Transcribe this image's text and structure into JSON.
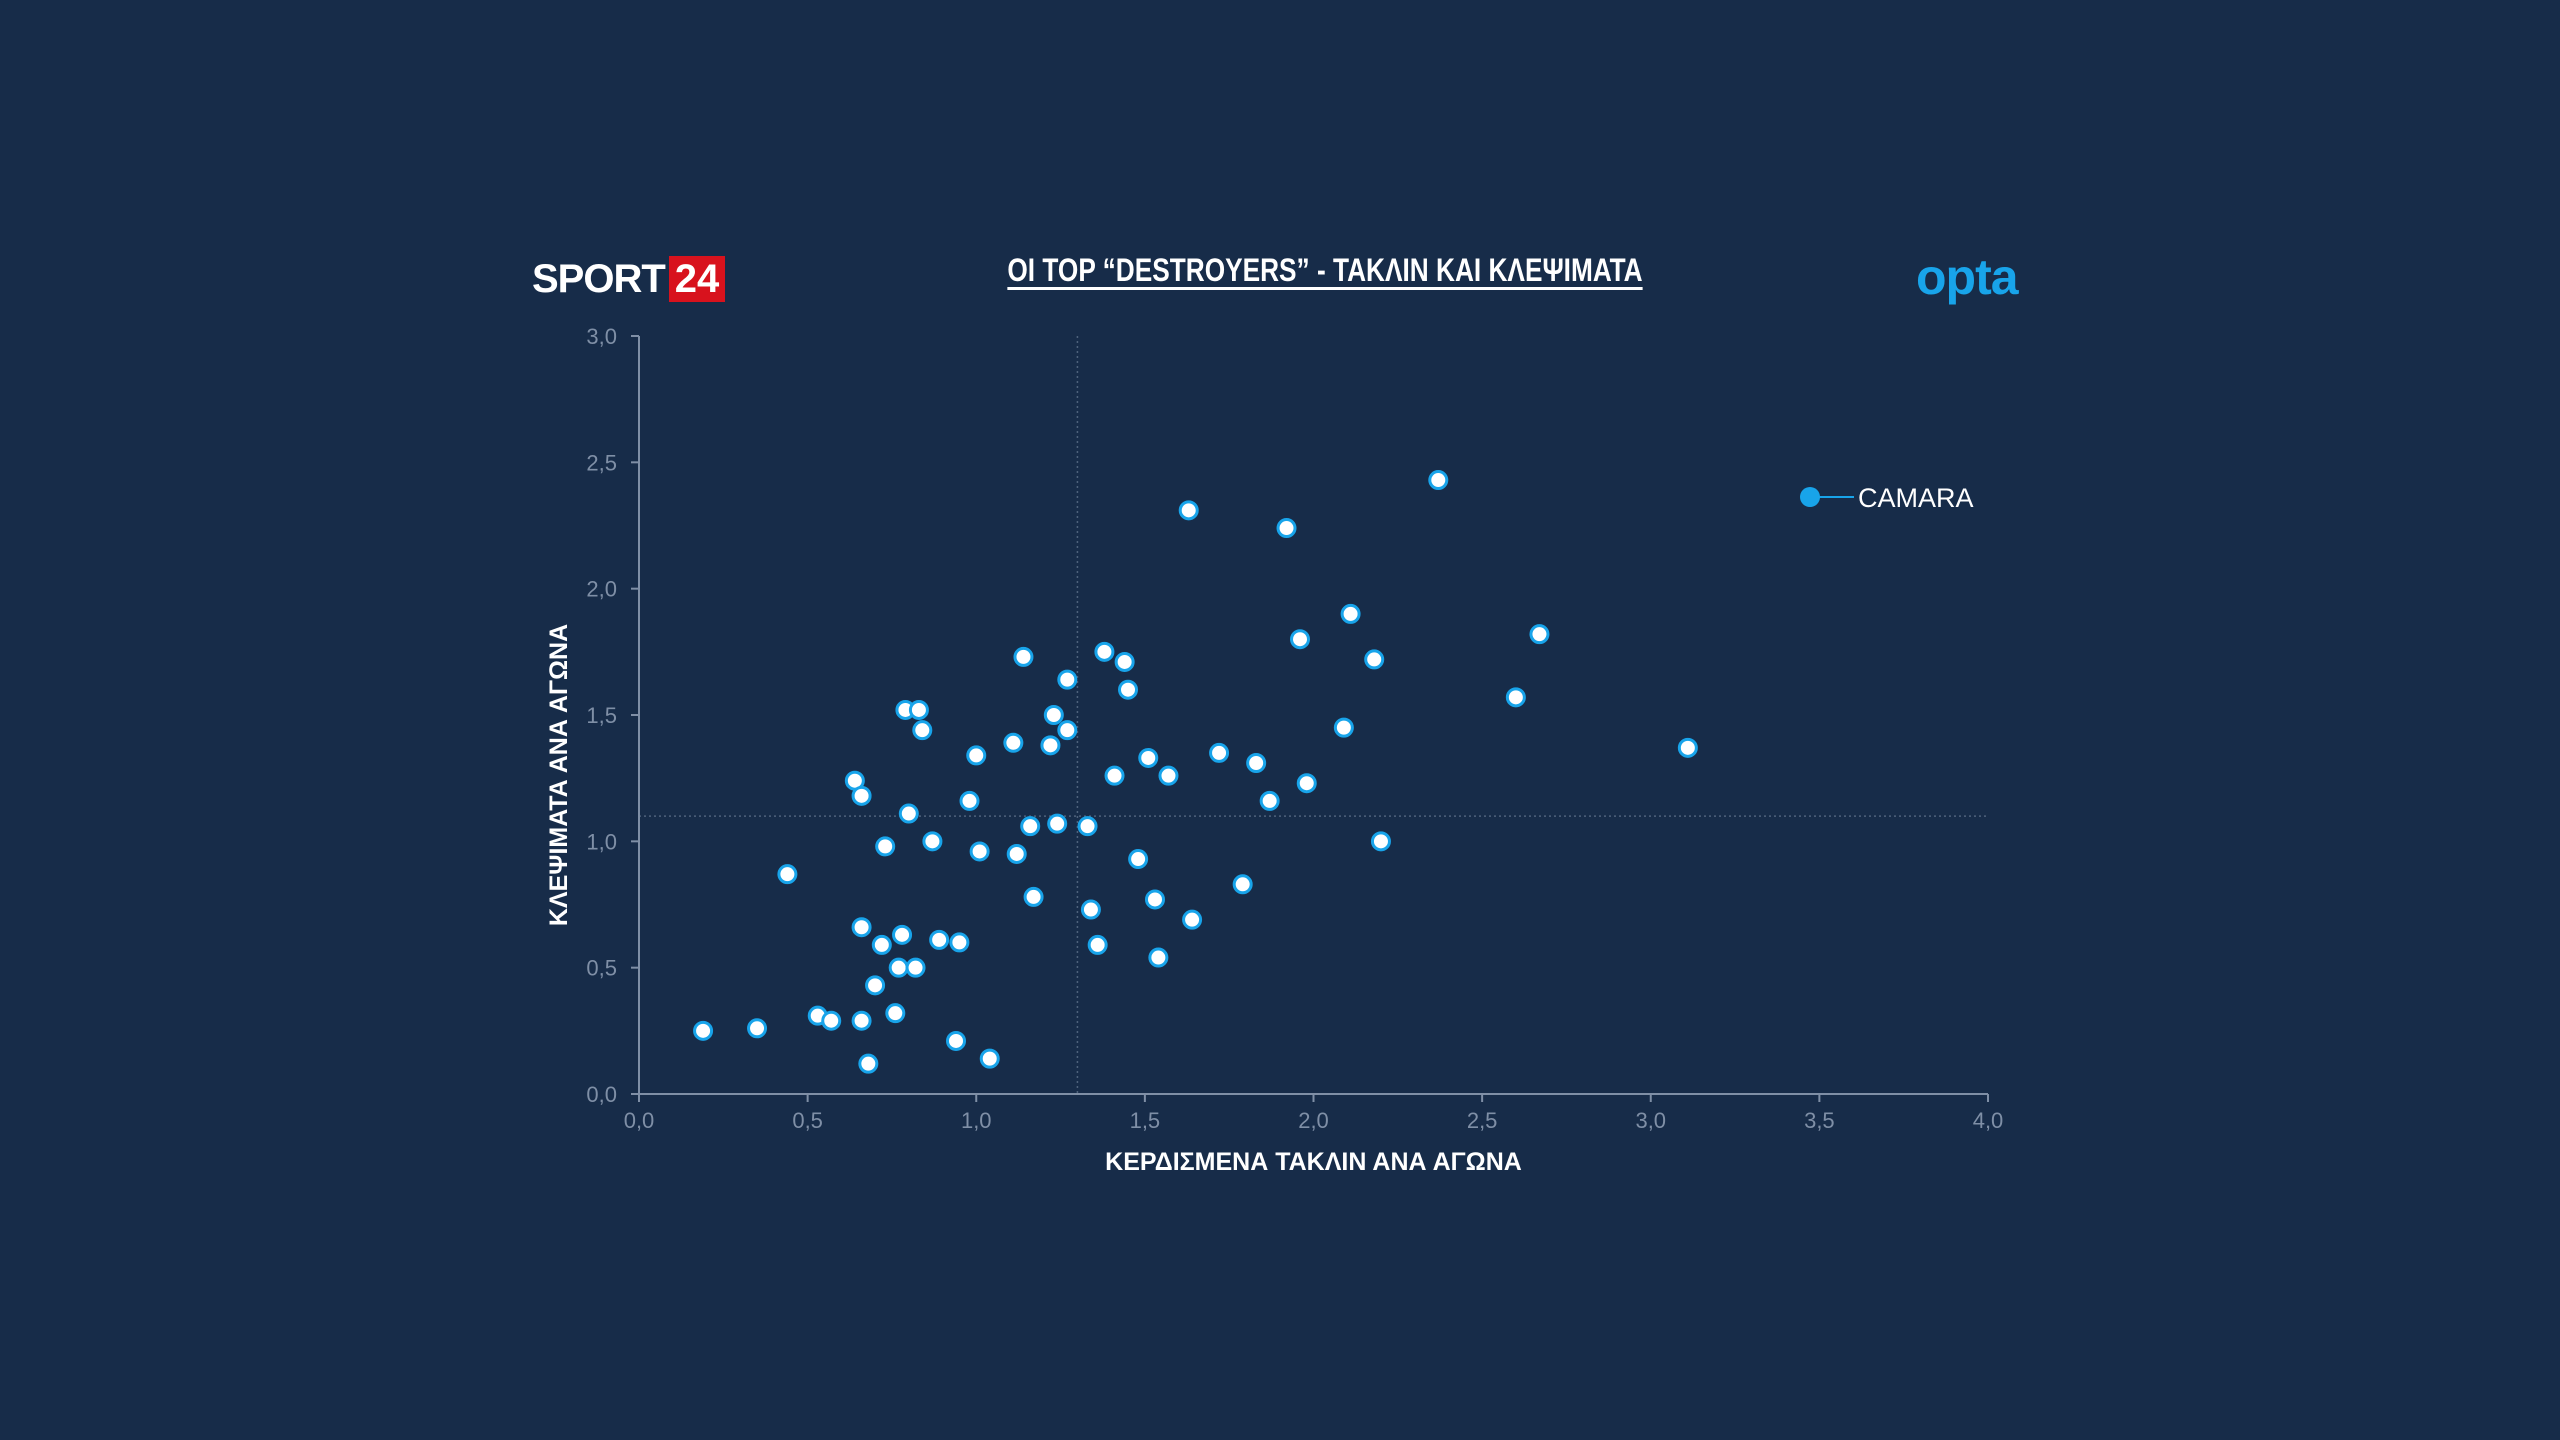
{
  "brand": {
    "word": "SPORT",
    "number": "24",
    "red": "#d8121d"
  },
  "partner_logo": "opta",
  "colors": {
    "background": "#172c49",
    "accent": "#18a4ea",
    "axis": "#7f8fa6",
    "grid": "#4f627c"
  },
  "chart_data": {
    "type": "scatter",
    "title": "ΟΙ TOP “DESTROYERS” - ΤΑΚΛΙΝ ΚΑΙ ΚΛΕΨΙΜΑΤΑ",
    "xlabel": "ΚΕΡΔΙΣΜΕΝΑ ΤΑΚΛΙΝ ΑΝΑ ΑΓΩΝΑ",
    "ylabel": "ΚΛΕΨΙΜΑΤΑ ΑΝΑ ΑΓΩΝΑ",
    "xlim": [
      0,
      4
    ],
    "ylim": [
      0,
      3
    ],
    "x_ticks": [
      "0,0",
      "0,5",
      "1,0",
      "1,5",
      "2,0",
      "2,5",
      "3,0",
      "3,5",
      "4,0"
    ],
    "y_ticks": [
      "0,0",
      "0,5",
      "1,0",
      "1,5",
      "2,0",
      "2,5",
      "3,0"
    ],
    "average_lines": {
      "x": 1.3,
      "y": 1.1
    },
    "grid": false,
    "legend": {
      "position": "top-right",
      "entries": [
        "CAMARA"
      ]
    },
    "highlight_color": "#18a4ea",
    "points": [
      [
        0.19,
        0.25
      ],
      [
        0.35,
        0.26
      ],
      [
        0.44,
        0.87
      ],
      [
        0.53,
        0.31
      ],
      [
        0.57,
        0.29
      ],
      [
        0.64,
        1.24
      ],
      [
        0.66,
        1.18
      ],
      [
        0.66,
        0.66
      ],
      [
        0.66,
        0.29
      ],
      [
        0.68,
        0.12
      ],
      [
        0.7,
        0.43
      ],
      [
        0.72,
        0.59
      ],
      [
        0.73,
        0.98
      ],
      [
        0.76,
        0.32
      ],
      [
        0.77,
        0.5
      ],
      [
        0.78,
        0.63
      ],
      [
        0.79,
        1.52
      ],
      [
        0.8,
        1.11
      ],
      [
        0.82,
        0.5
      ],
      [
        0.83,
        1.52
      ],
      [
        0.84,
        1.44
      ],
      [
        0.87,
        1.0
      ],
      [
        0.89,
        0.61
      ],
      [
        0.94,
        0.21
      ],
      [
        0.95,
        0.6
      ],
      [
        0.98,
        1.16
      ],
      [
        1.0,
        1.34
      ],
      [
        1.01,
        0.96
      ],
      [
        1.04,
        0.14
      ],
      [
        1.11,
        1.39
      ],
      [
        1.12,
        0.95
      ],
      [
        1.14,
        1.73
      ],
      [
        1.16,
        1.06
      ],
      [
        1.17,
        0.78
      ],
      [
        1.22,
        1.38
      ],
      [
        1.23,
        1.5
      ],
      [
        1.24,
        1.07
      ],
      [
        1.27,
        1.44
      ],
      [
        1.27,
        1.64
      ],
      [
        1.33,
        1.06
      ],
      [
        1.34,
        0.73
      ],
      [
        1.36,
        0.59
      ],
      [
        1.38,
        1.75
      ],
      [
        1.41,
        1.26
      ],
      [
        1.44,
        1.71
      ],
      [
        1.45,
        1.6
      ],
      [
        1.48,
        0.93
      ],
      [
        1.51,
        1.33
      ],
      [
        1.53,
        0.77
      ],
      [
        1.54,
        0.54
      ],
      [
        1.57,
        1.26
      ],
      [
        1.63,
        2.31
      ],
      [
        1.64,
        0.69
      ],
      [
        1.72,
        1.35
      ],
      [
        1.79,
        0.83
      ],
      [
        1.83,
        1.31
      ],
      [
        1.87,
        1.16
      ],
      [
        1.92,
        2.24
      ],
      [
        1.96,
        1.8
      ],
      [
        1.98,
        1.23
      ],
      [
        2.09,
        1.45
      ],
      [
        2.11,
        1.9
      ],
      [
        2.18,
        1.72
      ],
      [
        2.2,
        1.0
      ],
      [
        2.37,
        2.43
      ],
      [
        2.6,
        1.57
      ],
      [
        2.67,
        1.82
      ],
      [
        3.11,
        1.37
      ]
    ]
  }
}
